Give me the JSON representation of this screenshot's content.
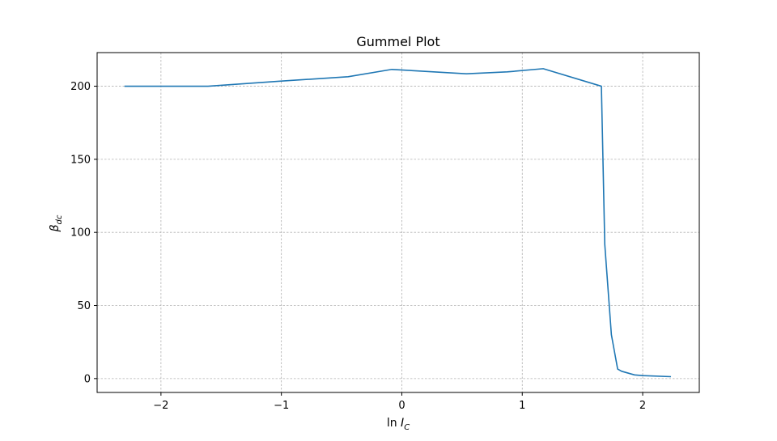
{
  "chart_data": {
    "type": "line",
    "title": "Gummel Plot",
    "xlabel": "ln I_C",
    "ylabel": "β_dc",
    "xlim": [
      -2.53,
      2.47
    ],
    "ylim": [
      -9.5,
      223
    ],
    "grid": true,
    "xticks": [
      -2,
      -1,
      0,
      1,
      2
    ],
    "xtick_labels": [
      "−2",
      "−1",
      "0",
      "1",
      "2"
    ],
    "yticks": [
      0,
      50,
      100,
      150,
      200
    ],
    "ytick_labels": [
      "0",
      "50",
      "100",
      "150",
      "200"
    ],
    "series": [
      {
        "color": "#1f77b4",
        "x": [
          -2.303,
          -1.609,
          -1.0,
          -0.446,
          -0.083,
          0.536,
          0.875,
          1.174,
          1.657,
          1.685,
          1.74,
          1.792,
          1.825,
          1.932,
          2.0,
          2.235
        ],
        "y": [
          200,
          200,
          203.5,
          206.5,
          211.5,
          208.5,
          209.8,
          212,
          200,
          92,
          30,
          6.5,
          5.0,
          2.5,
          2.0,
          1.3
        ]
      }
    ]
  }
}
